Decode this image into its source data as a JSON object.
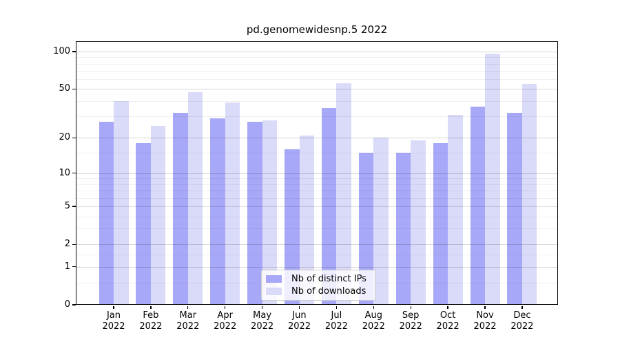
{
  "figure": {
    "title": "pd.genomewidesnp.5 2022"
  },
  "chart_data": {
    "type": "bar",
    "title": "pd.genomewidesnp.5 2022",
    "categories": [
      "Jan",
      "Feb",
      "Mar",
      "Apr",
      "May",
      "Jun",
      "Jul",
      "Aug",
      "Sep",
      "Oct",
      "Nov",
      "Dec"
    ],
    "year": "2022",
    "series": [
      {
        "name": "Nb of distinct IPs",
        "color": "#a8a8f8",
        "values": [
          27,
          18,
          32,
          29,
          27,
          16,
          35,
          15,
          15,
          18,
          36,
          32
        ]
      },
      {
        "name": "Nb of downloads",
        "color": "#dadaf9",
        "values": [
          40,
          25,
          47,
          39,
          28,
          21,
          56,
          20,
          19,
          31,
          96,
          55
        ]
      }
    ],
    "xlabel": "",
    "ylabel": "",
    "yscale": "log1p",
    "ylim": [
      0,
      110
    ],
    "yticks": [
      0,
      1,
      2,
      5,
      10,
      20,
      50,
      100
    ],
    "yminorticks": [
      0.5,
      1.5,
      3,
      4,
      6,
      7,
      8,
      9,
      15,
      30,
      40,
      60,
      70,
      80,
      90
    ],
    "grid": true,
    "legend_position": "lower center"
  }
}
